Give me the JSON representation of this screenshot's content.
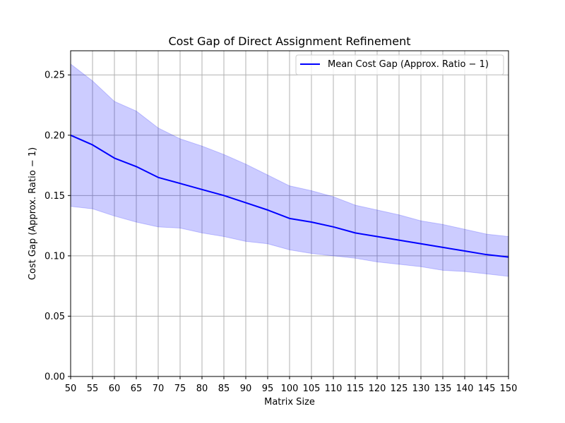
{
  "chart_data": {
    "type": "line",
    "title": "Cost Gap of Direct Assignment Refinement",
    "xlabel": "Matrix Size",
    "ylabel": "Cost Gap (Approx. Ratio − 1)",
    "xlim": [
      50,
      150
    ],
    "ylim": [
      0,
      0.27
    ],
    "xticks": [
      50,
      55,
      60,
      65,
      70,
      75,
      80,
      85,
      90,
      95,
      100,
      105,
      110,
      115,
      120,
      125,
      130,
      135,
      140,
      145,
      150
    ],
    "yticks": [
      0.0,
      0.05,
      0.1,
      0.15,
      0.2,
      0.25
    ],
    "ytick_labels": [
      "0.00",
      "0.05",
      "0.10",
      "0.15",
      "0.20",
      "0.25"
    ],
    "grid": true,
    "legend_position": "top-right",
    "x": [
      50,
      55,
      60,
      65,
      70,
      75,
      80,
      85,
      90,
      95,
      100,
      105,
      110,
      115,
      120,
      125,
      130,
      135,
      140,
      145,
      150
    ],
    "series": [
      {
        "name": "Mean Cost Gap (Approx. Ratio − 1)",
        "color": "#0000ff",
        "values": [
          0.2,
          0.192,
          0.181,
          0.174,
          0.165,
          0.16,
          0.155,
          0.15,
          0.144,
          0.138,
          0.131,
          0.128,
          0.124,
          0.119,
          0.116,
          0.113,
          0.11,
          0.107,
          0.104,
          0.101,
          0.099
        ]
      }
    ],
    "band": {
      "color": "#0000ff",
      "lower": [
        0.141,
        0.139,
        0.133,
        0.128,
        0.124,
        0.123,
        0.119,
        0.116,
        0.112,
        0.11,
        0.105,
        0.102,
        0.1,
        0.098,
        0.095,
        0.093,
        0.091,
        0.088,
        0.087,
        0.085,
        0.083
      ],
      "upper": [
        0.259,
        0.245,
        0.228,
        0.22,
        0.206,
        0.197,
        0.191,
        0.184,
        0.176,
        0.167,
        0.158,
        0.154,
        0.149,
        0.142,
        0.138,
        0.134,
        0.129,
        0.126,
        0.122,
        0.118,
        0.116
      ]
    }
  }
}
